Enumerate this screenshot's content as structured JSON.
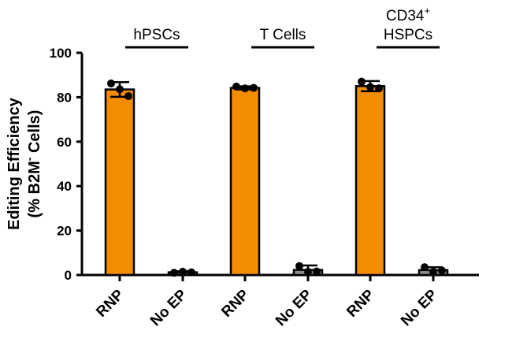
{
  "chart_data": {
    "type": "bar",
    "ylabel_line1": "Editing Efficiency",
    "ylabel_line2_pre": "(% B2M",
    "ylabel_line2_sup": "-",
    "ylabel_line2_post": " Cells)",
    "ylim": [
      0,
      100
    ],
    "yticks": [
      0,
      20,
      40,
      60,
      80,
      100
    ],
    "groups": [
      {
        "label_lines": [
          "hPSCs"
        ],
        "label_sup": ""
      },
      {
        "label_lines": [
          "T Cells"
        ],
        "label_sup": ""
      },
      {
        "label_lines": [
          "CD34",
          "HSPCs"
        ],
        "label_sup": "+"
      }
    ],
    "categories": [
      "RNP",
      "No EP",
      "RNP",
      "No EP",
      "RNP",
      "No EP"
    ],
    "values": [
      83.5,
      1.2,
      84.2,
      2.3,
      85.0,
      2.2
    ],
    "errors": [
      3.3,
      0.5,
      0.7,
      2.0,
      2.3,
      1.3
    ],
    "points": [
      [
        86.2,
        83.6,
        80.5
      ],
      [
        1.0,
        1.5,
        1.2
      ],
      [
        84.8,
        84.0,
        84.2
      ],
      [
        4.0,
        1.4,
        1.6
      ],
      [
        87.0,
        84.6,
        84.0
      ],
      [
        3.5,
        1.4,
        2.0
      ]
    ],
    "bar_colors": [
      "#f28c00",
      "#8c8c8c",
      "#f28c00",
      "#8c8c8c",
      "#f28c00",
      "#8c8c8c"
    ],
    "grid": false,
    "legend": "none"
  }
}
